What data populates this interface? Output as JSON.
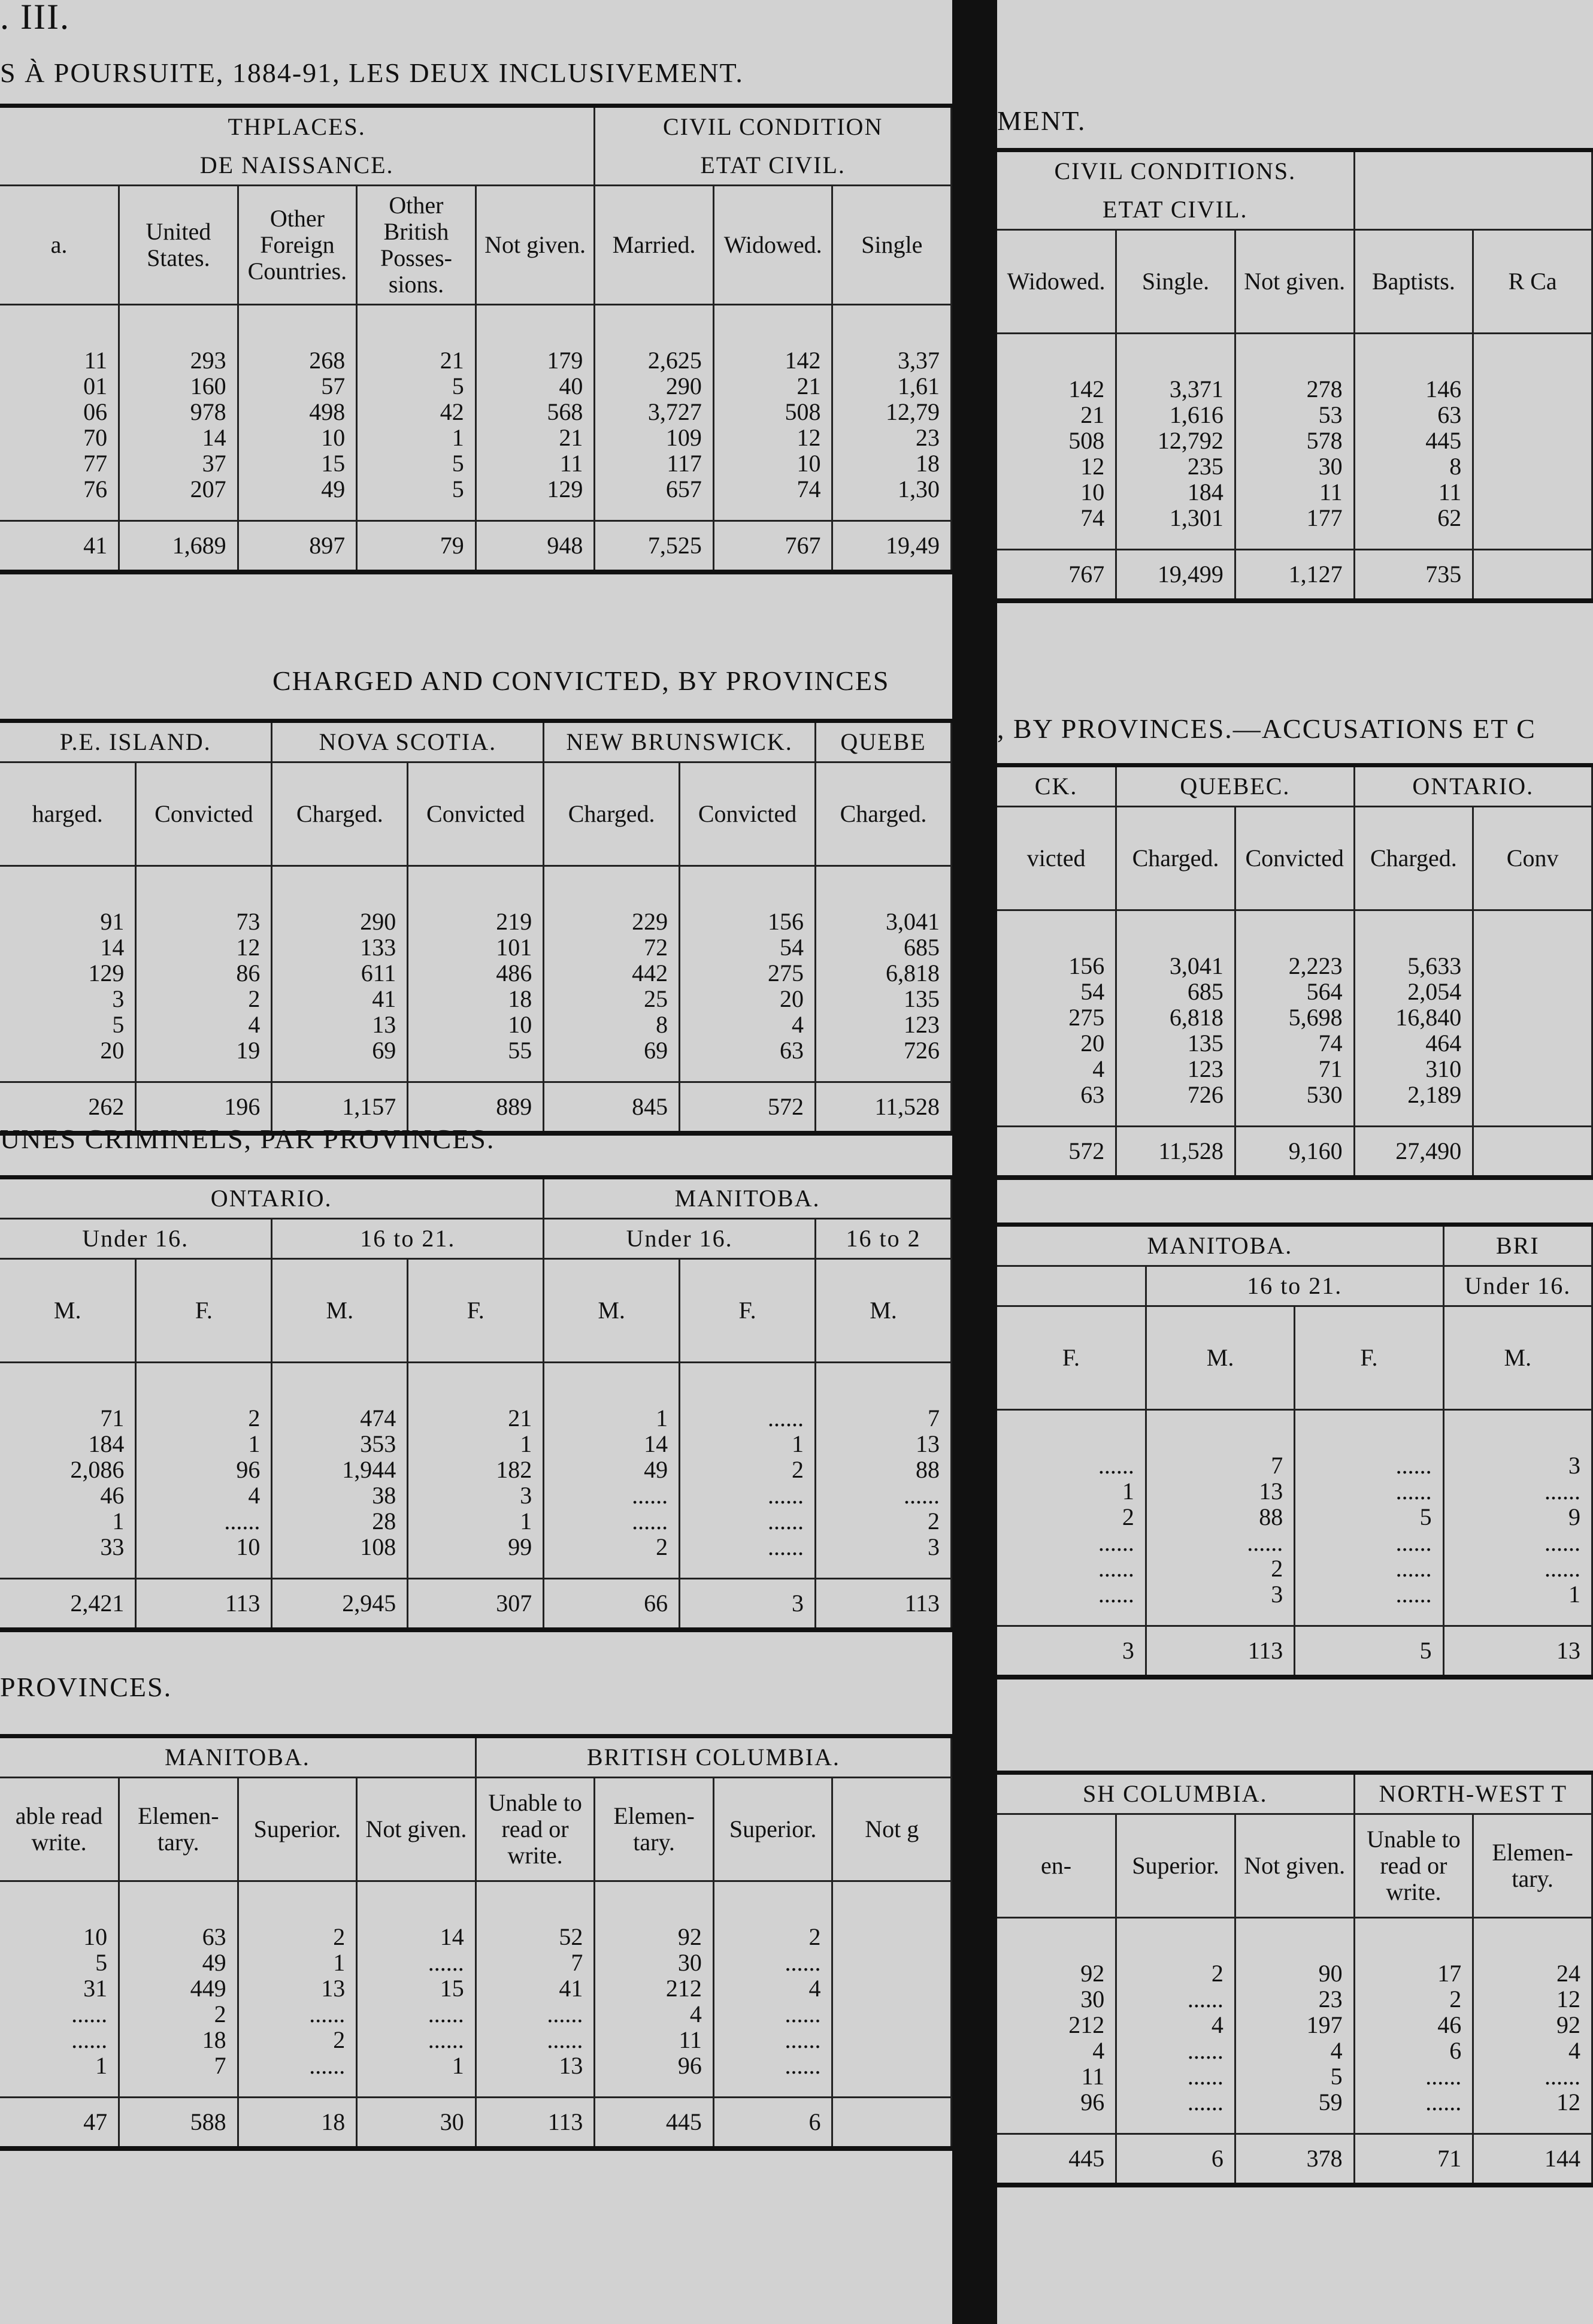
{
  "left": {
    "header": ". III.",
    "title": "S À POURSUITE, 1884-91, LES DEUX INCLUSIVEMENT.",
    "sections": [
      {
        "groups": [
          [
            "THPLACES.",
            "DE NAISSANCE."
          ],
          [
            "CIVIL CONDITION",
            "ETAT CIVIL."
          ]
        ],
        "columns": [
          "a.",
          "United States.",
          "Other Foreign Countries.",
          "Other British Posses-sions.",
          "Not given.",
          "Married.",
          "Widowed.",
          "Single"
        ],
        "rows": [
          [
            "11",
            "293",
            "268",
            "21",
            "179",
            "2,625",
            "142",
            "3,37"
          ],
          [
            "01",
            "160",
            "57",
            "5",
            "40",
            "290",
            "21",
            "1,61"
          ],
          [
            "06",
            "978",
            "498",
            "42",
            "568",
            "3,727",
            "508",
            "12,79"
          ],
          [
            "70",
            "14",
            "10",
            "1",
            "21",
            "109",
            "12",
            "23"
          ],
          [
            "77",
            "37",
            "15",
            "5",
            "11",
            "117",
            "10",
            "18"
          ],
          [
            "76",
            "207",
            "49",
            "5",
            "129",
            "657",
            "74",
            "1,30"
          ]
        ],
        "totals": [
          "41",
          "1,689",
          "897",
          "79",
          "948",
          "7,525",
          "767",
          "19,49"
        ]
      },
      {
        "title": "CHARGED AND CONVICTED, BY PROVINCES",
        "groups": [
          [
            "P.E. ISLAND."
          ],
          [
            "NOVA SCOTIA."
          ],
          [
            "NEW BRUNSWICK."
          ],
          [
            "QUEBE"
          ]
        ],
        "columns": [
          "harged.",
          "Convicted",
          "Charged.",
          "Convicted",
          "Charged.",
          "Convicted",
          "Charged."
        ],
        "rows": [
          [
            "91",
            "73",
            "290",
            "219",
            "229",
            "156",
            "3,041"
          ],
          [
            "14",
            "12",
            "133",
            "101",
            "72",
            "54",
            "685"
          ],
          [
            "129",
            "86",
            "611",
            "486",
            "442",
            "275",
            "6,818"
          ],
          [
            "3",
            "2",
            "41",
            "18",
            "25",
            "20",
            "135"
          ],
          [
            "5",
            "4",
            "13",
            "10",
            "8",
            "4",
            "123"
          ],
          [
            "20",
            "19",
            "69",
            "55",
            "69",
            "63",
            "726"
          ]
        ],
        "totals": [
          "262",
          "196",
          "1,157",
          "889",
          "845",
          "572",
          "11,528"
        ]
      },
      {
        "title": "UNES CRIMINELS, PAR PROVINCES.",
        "groups": [
          [
            "ONTARIO."
          ],
          [
            "MANITOBA."
          ]
        ],
        "subgroups": [
          "Under 16.",
          "16 to 21.",
          "Under 16.",
          "16 to 2"
        ],
        "columns": [
          "M.",
          "F.",
          "M.",
          "F.",
          "M.",
          "F.",
          "M."
        ],
        "rows": [
          [
            "71",
            "2",
            "474",
            "21",
            "1",
            "......",
            "7"
          ],
          [
            "184",
            "1",
            "353",
            "1",
            "14",
            "1",
            "13"
          ],
          [
            "2,086",
            "96",
            "1,944",
            "182",
            "49",
            "2",
            "88"
          ],
          [
            "46",
            "4",
            "38",
            "3",
            "......",
            "......",
            "......"
          ],
          [
            "1",
            "......",
            "28",
            "1",
            "......",
            "......",
            "2"
          ],
          [
            "33",
            "10",
            "108",
            "99",
            "2",
            "......",
            "3"
          ]
        ],
        "totals": [
          "2,421",
          "113",
          "2,945",
          "307",
          "66",
          "3",
          "113"
        ]
      },
      {
        "title": "PROVINCES.",
        "groups": [
          [
            "MANITOBA."
          ],
          [
            "BRITISH COLUMBIA."
          ]
        ],
        "columns": [
          "able read write.",
          "Elemen-tary.",
          "Superior.",
          "Not given.",
          "Unable to read or write.",
          "Elemen-tary.",
          "Superior.",
          "Not g"
        ],
        "rows": [
          [
            "10",
            "63",
            "2",
            "14",
            "52",
            "92",
            "2",
            ""
          ],
          [
            "5",
            "49",
            "1",
            "......",
            "7",
            "30",
            "......",
            ""
          ],
          [
            "31",
            "449",
            "13",
            "15",
            "41",
            "212",
            "4",
            ""
          ],
          [
            "......",
            "2",
            "......",
            "......",
            "......",
            "4",
            "......",
            ""
          ],
          [
            "......",
            "18",
            "2",
            "......",
            "......",
            "11",
            "......",
            ""
          ],
          [
            "1",
            "7",
            "......",
            "1",
            "13",
            "96",
            "......",
            ""
          ]
        ],
        "totals": [
          "47",
          "588",
          "18",
          "30",
          "113",
          "445",
          "6",
          ""
        ]
      }
    ]
  },
  "right": {
    "sections": [
      {
        "title": "MENT.",
        "groups": [
          [
            "CIVIL CONDITIONS.",
            "ETAT CIVIL."
          ]
        ],
        "columns": [
          "Widowed.",
          "Single.",
          "Not given.",
          "Baptists.",
          "R Ca"
        ],
        "rows": [
          [
            "142",
            "3,371",
            "278",
            "146",
            ""
          ],
          [
            "21",
            "1,616",
            "53",
            "63",
            ""
          ],
          [
            "508",
            "12,792",
            "578",
            "445",
            ""
          ],
          [
            "12",
            "235",
            "30",
            "8",
            ""
          ],
          [
            "10",
            "184",
            "11",
            "11",
            ""
          ],
          [
            "74",
            "1,301",
            "177",
            "62",
            ""
          ]
        ],
        "totals": [
          "767",
          "19,499",
          "1,127",
          "735",
          ""
        ]
      },
      {
        "title": ", BY PROVINCES.—ACCUSATIONS ET C",
        "groups": [
          [
            "CK."
          ],
          [
            "QUEBEC."
          ],
          [
            "ONTARIO."
          ]
        ],
        "columns": [
          "victed",
          "Charged.",
          "Convicted",
          "Charged.",
          "Conv"
        ],
        "rows": [
          [
            "156",
            "3,041",
            "2,223",
            "5,633",
            ""
          ],
          [
            "54",
            "685",
            "564",
            "2,054",
            ""
          ],
          [
            "275",
            "6,818",
            "5,698",
            "16,840",
            ""
          ],
          [
            "20",
            "135",
            "74",
            "464",
            ""
          ],
          [
            "4",
            "123",
            "71",
            "310",
            ""
          ],
          [
            "63",
            "726",
            "530",
            "2,189",
            ""
          ]
        ],
        "totals": [
          "572",
          "11,528",
          "9,160",
          "27,490",
          ""
        ]
      },
      {
        "groups": [
          [
            "MANITOBA."
          ],
          [
            "BRI"
          ]
        ],
        "subgroups": [
          "16 to 21.",
          "Under 16."
        ],
        "columns": [
          "F.",
          "M.",
          "F.",
          "M."
        ],
        "rows": [
          [
            "......",
            "7",
            "......",
            "3"
          ],
          [
            "1",
            "13",
            "......",
            "......"
          ],
          [
            "2",
            "88",
            "5",
            "9"
          ],
          [
            "......",
            "......",
            "......",
            "......"
          ],
          [
            "......",
            "2",
            "......",
            "......"
          ],
          [
            "......",
            "3",
            "......",
            "1"
          ]
        ],
        "totals": [
          "3",
          "113",
          "5",
          "13"
        ]
      },
      {
        "groups": [
          [
            "SH COLUMBIA."
          ],
          [
            "NORTH-WEST T"
          ]
        ],
        "columns": [
          "en-",
          "Superior.",
          "Not given.",
          "Unable to read or write.",
          "Elemen-tary."
        ],
        "rows": [
          [
            "92",
            "2",
            "90",
            "17",
            "24"
          ],
          [
            "30",
            "......",
            "23",
            "2",
            "12"
          ],
          [
            "212",
            "4",
            "197",
            "46",
            "92"
          ],
          [
            "4",
            "......",
            "4",
            "6",
            "4"
          ],
          [
            "11",
            "......",
            "5",
            "......",
            "......"
          ],
          [
            "96",
            "......",
            "59",
            "......",
            "12"
          ]
        ],
        "totals": [
          "445",
          "6",
          "378",
          "71",
          "144"
        ]
      }
    ]
  }
}
